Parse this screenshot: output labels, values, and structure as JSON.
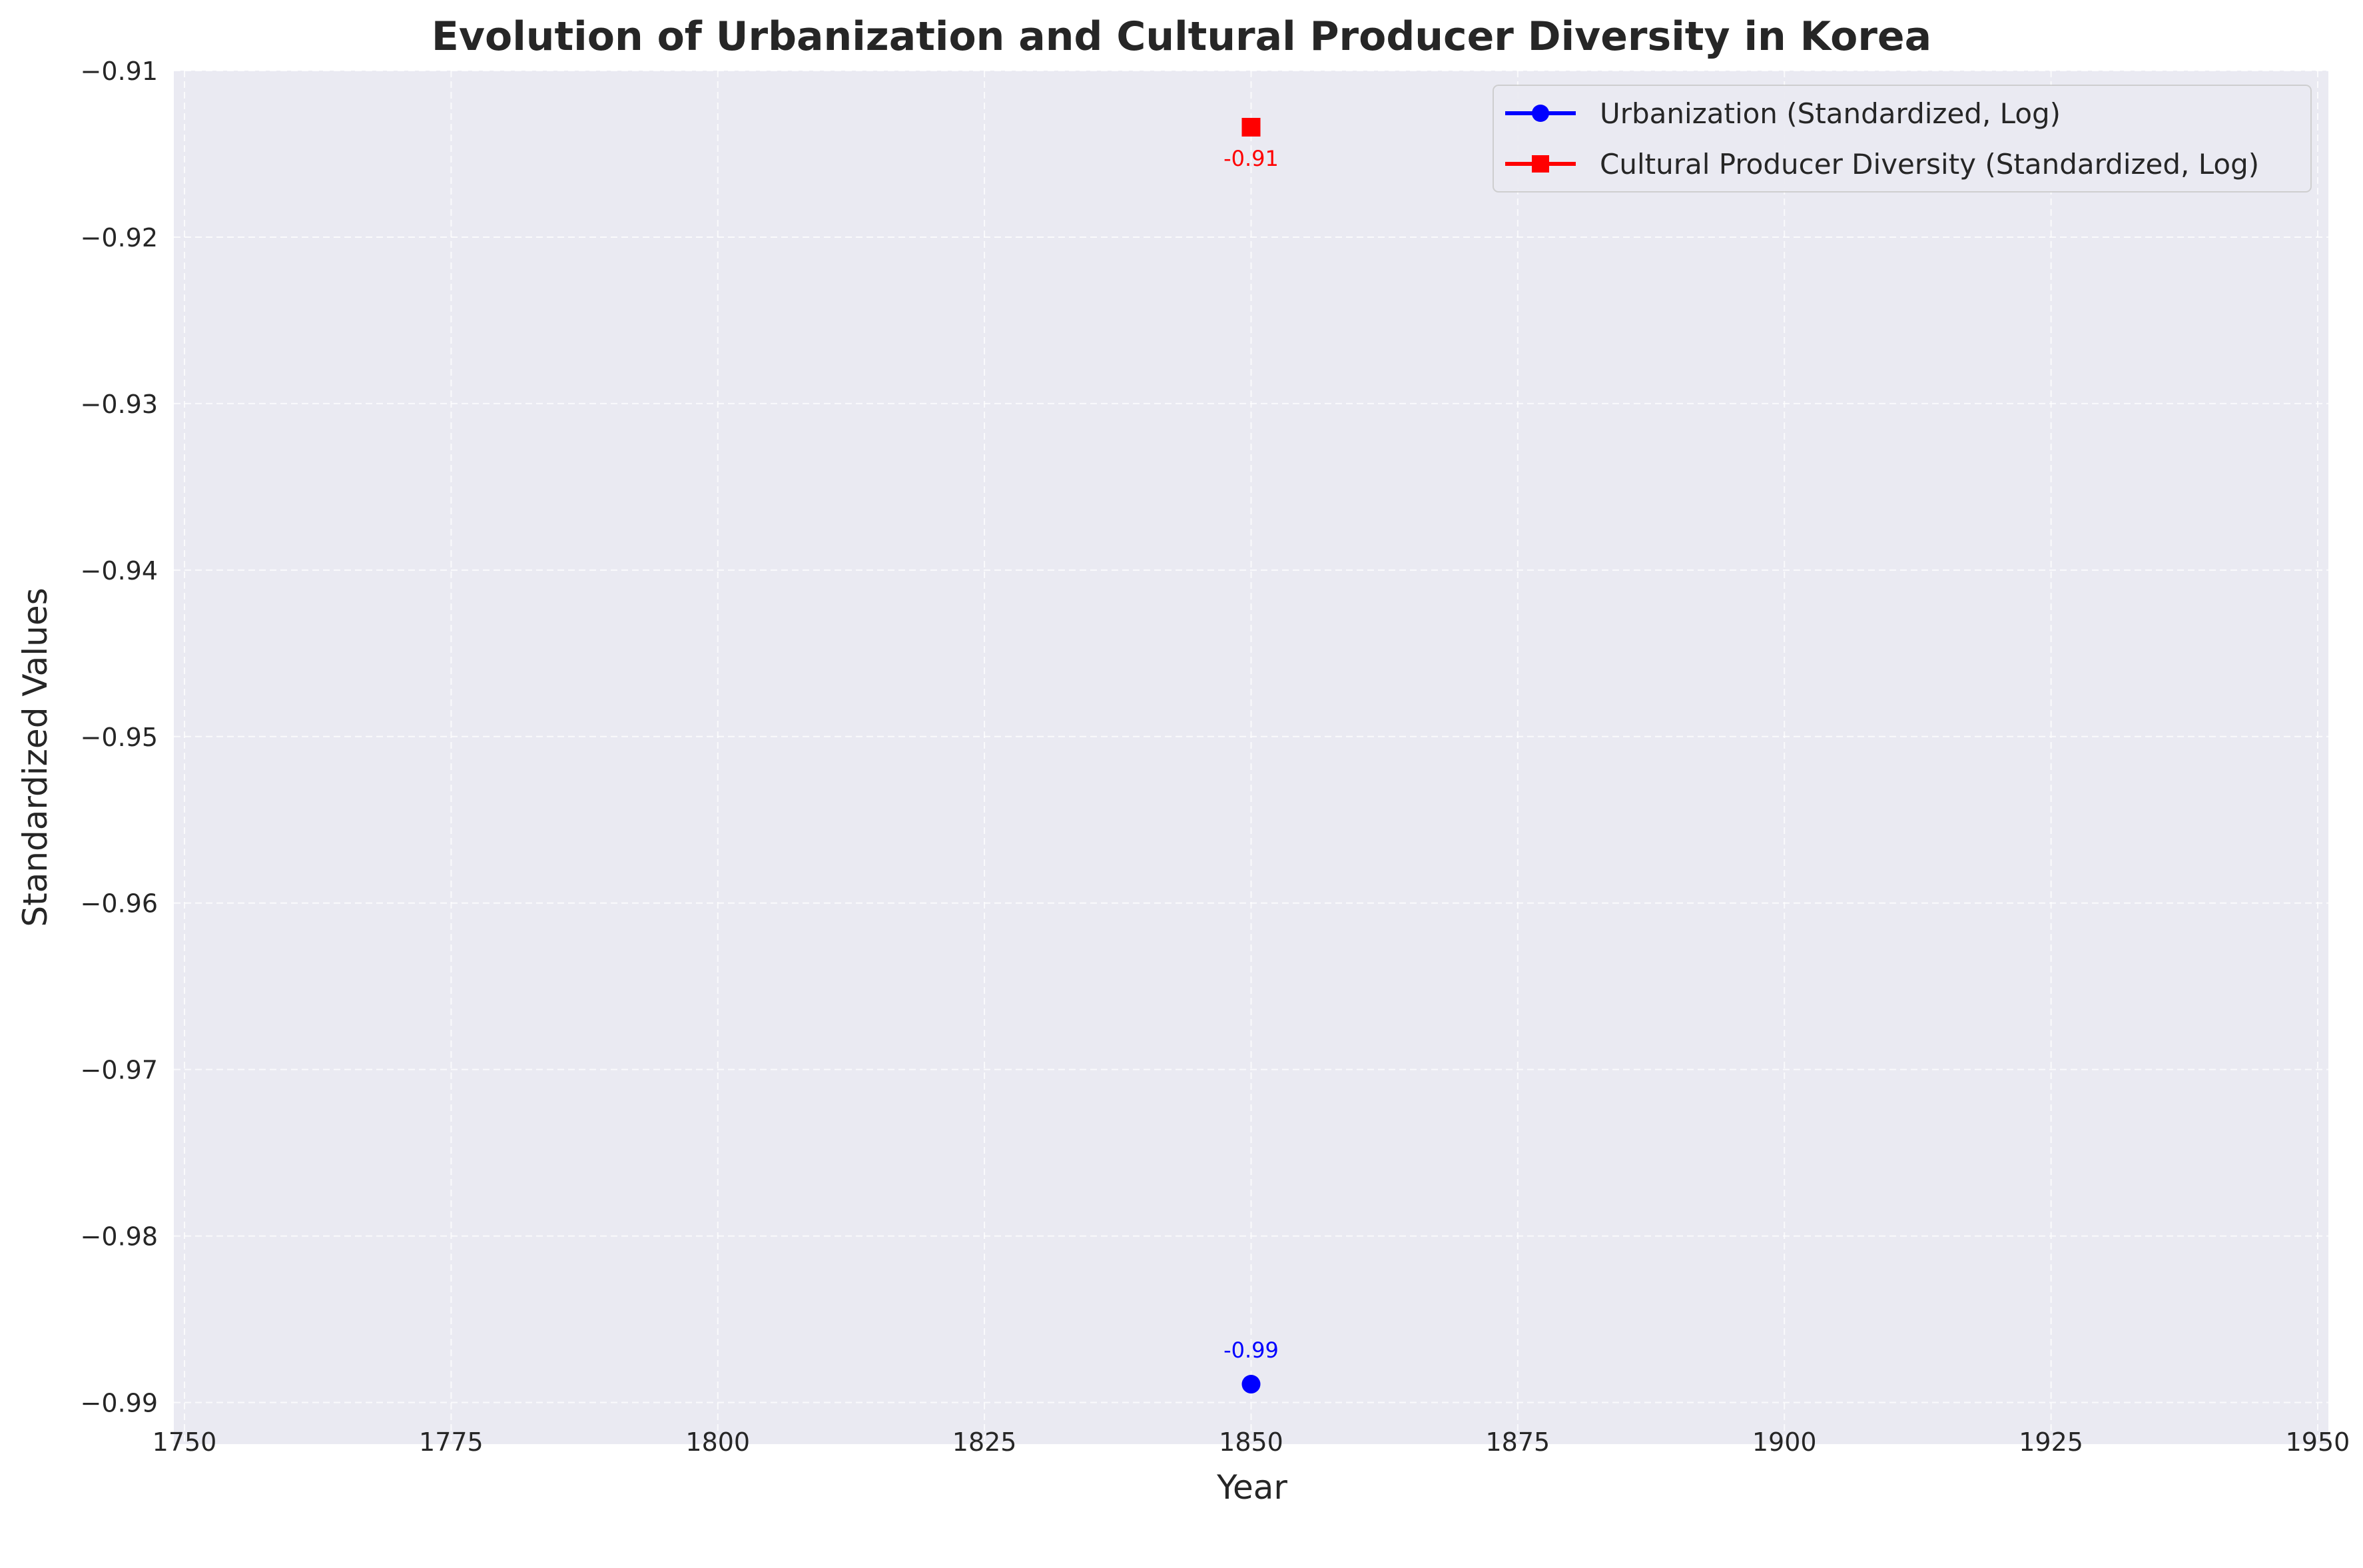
{
  "chart_data": {
    "type": "line",
    "title": "Evolution of Urbanization and Cultural Producer Diversity in Korea",
    "xlabel": "Year",
    "ylabel": "Standardized Values",
    "xlim": [
      1749,
      1951
    ],
    "ylim": [
      -0.9925,
      -0.91
    ],
    "xticks": [
      1750,
      1775,
      1800,
      1825,
      1850,
      1875,
      1900,
      1925,
      1950
    ],
    "yticks": [
      -0.91,
      -0.92,
      -0.93,
      -0.94,
      -0.95,
      -0.96,
      -0.97,
      -0.98,
      -0.99
    ],
    "ytick_labels": [
      "−0.91",
      "−0.92",
      "−0.93",
      "−0.94",
      "−0.95",
      "−0.96",
      "−0.97",
      "−0.98",
      "−0.99"
    ],
    "grid": true,
    "legend_position": "top-right",
    "series": [
      {
        "name": "Urbanization (Standardized, Log)",
        "color": "#0000ff",
        "marker": "circle",
        "x": [
          1850
        ],
        "y": [
          -0.9889
        ],
        "labels": [
          "-0.99"
        ]
      },
      {
        "name": "Cultural Producer Diversity (Standardized, Log)",
        "color": "#ff0000",
        "marker": "square",
        "x": [
          1850
        ],
        "y": [
          -0.9134
        ],
        "labels": [
          "-0.91"
        ]
      }
    ]
  },
  "colors": {
    "plot_background": "#eaeaf2",
    "grid": "#ffffff"
  }
}
